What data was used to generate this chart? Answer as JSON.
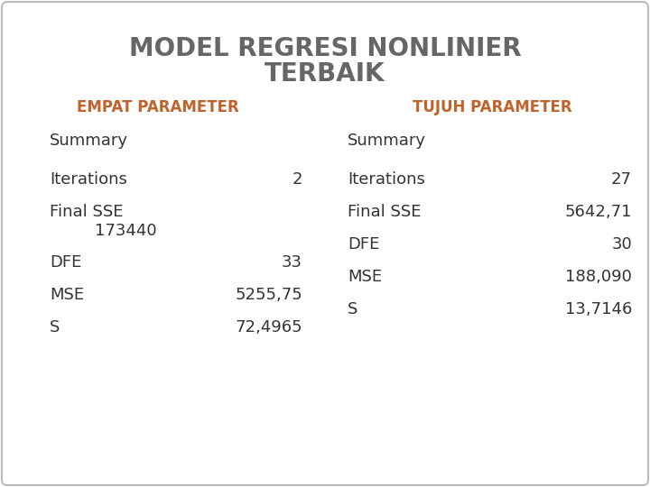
{
  "title_line1": "MODEL REGRESI NONLINIER",
  "title_line2": "TERBAIK",
  "title_color": "#666666",
  "title_fontsize": 20,
  "title_fontweight": "bold",
  "header_color": "#c0622a",
  "header_fontsize": 12,
  "header_fontweight": "bold",
  "col1_header": "EMPAT PARAMETER",
  "col2_header": "TUJUH PARAMETER",
  "summary_label": "Summary",
  "summary_fontsize": 13,
  "summary_color": "#333333",
  "data_fontsize": 13,
  "data_color": "#333333",
  "col1_data": [
    [
      "Iterations",
      "2"
    ],
    [
      "Final SSE",
      ""
    ],
    [
      "",
      "173440"
    ],
    [
      "DFE",
      "33"
    ],
    [
      "MSE",
      "5255,75"
    ],
    [
      "S",
      "72,4965"
    ]
  ],
  "col2_data": [
    [
      "Iterations",
      "27"
    ],
    [
      "Final SSE",
      "5642,71"
    ],
    [
      "DFE",
      "30"
    ],
    [
      "MSE",
      "188,090"
    ],
    [
      "S",
      "13,7146"
    ]
  ],
  "bg_color": "#ffffff",
  "border_color": "#bbbbbb"
}
